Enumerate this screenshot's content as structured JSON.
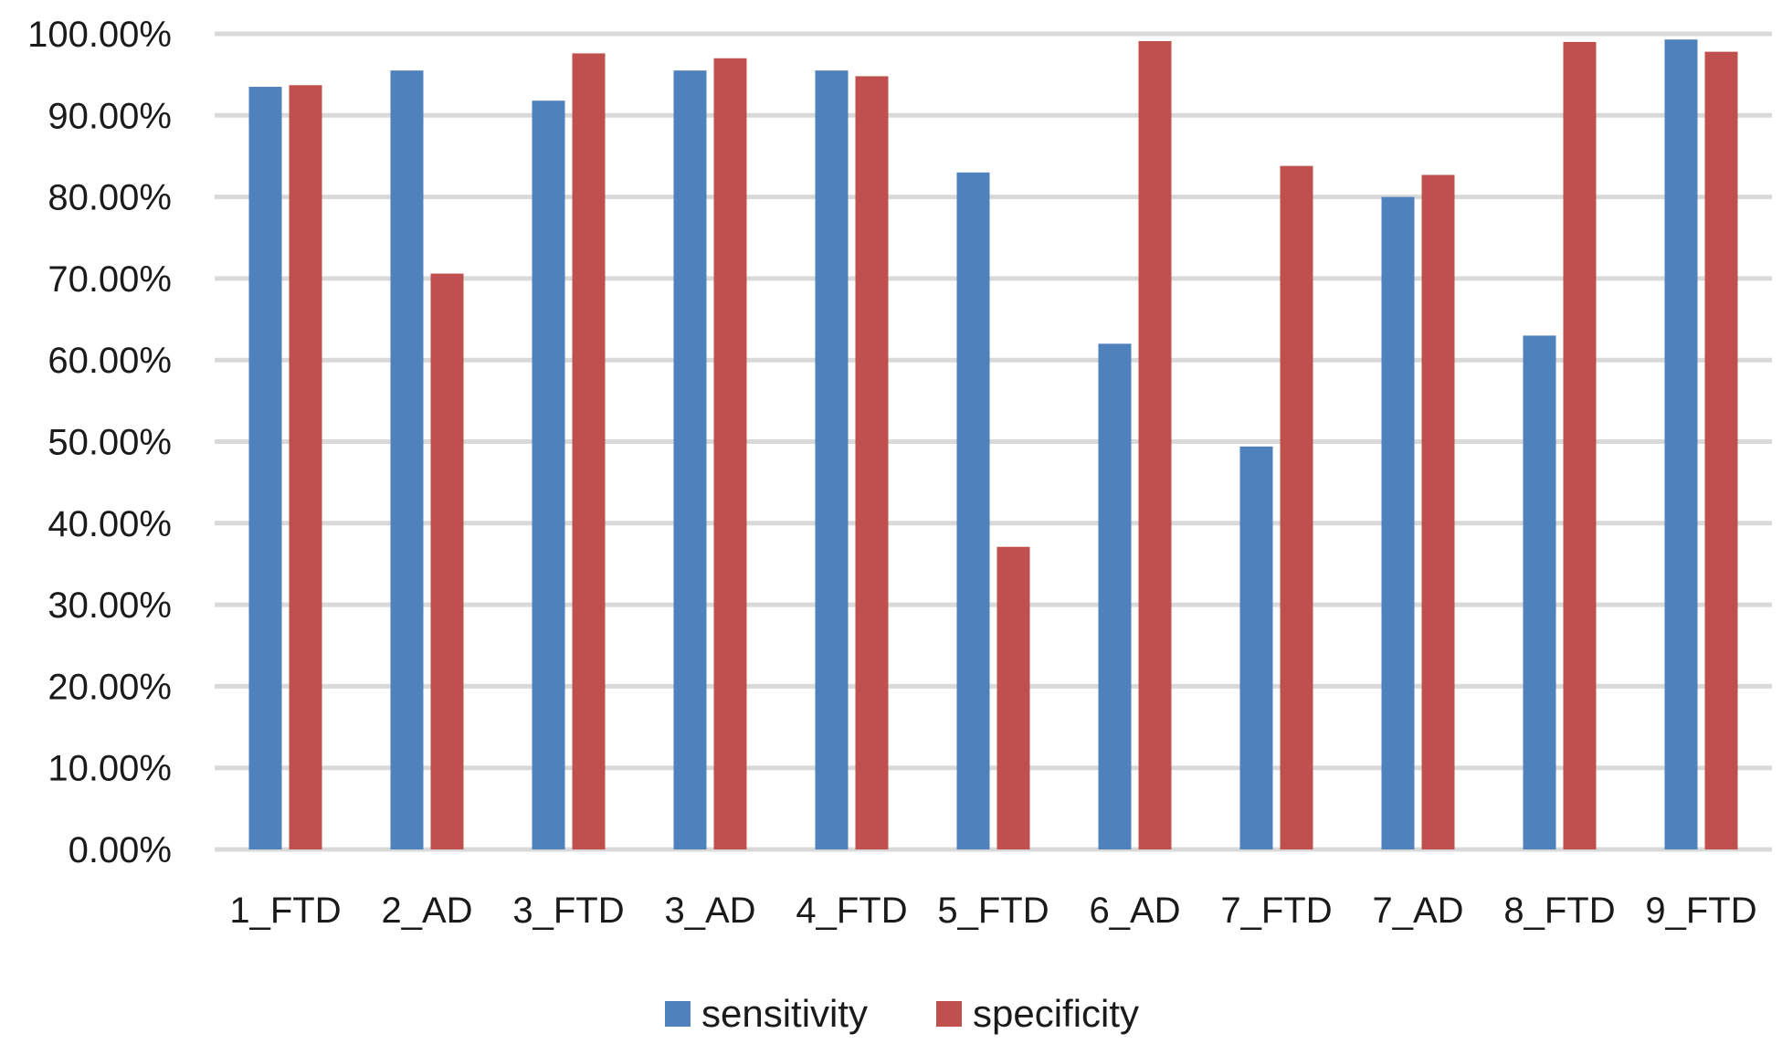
{
  "chart_data": {
    "type": "bar",
    "title": "",
    "xlabel": "",
    "ylabel": "",
    "ylim": [
      0,
      1
    ],
    "grid": true,
    "legend_position": "bottom",
    "y_ticks": [
      {
        "value": 0.0,
        "label": "0.00%"
      },
      {
        "value": 0.1,
        "label": "10.00%"
      },
      {
        "value": 0.2,
        "label": "20.00%"
      },
      {
        "value": 0.3,
        "label": "30.00%"
      },
      {
        "value": 0.4,
        "label": "40.00%"
      },
      {
        "value": 0.5,
        "label": "50.00%"
      },
      {
        "value": 0.6,
        "label": "60.00%"
      },
      {
        "value": 0.7,
        "label": "70.00%"
      },
      {
        "value": 0.8,
        "label": "80.00%"
      },
      {
        "value": 0.9,
        "label": "90.00%"
      },
      {
        "value": 1.0,
        "label": "100.00%"
      }
    ],
    "categories": [
      "1_FTD",
      "2_AD",
      "3_FTD",
      "3_AD",
      "4_FTD",
      "5_FTD",
      "6_AD",
      "7_FTD",
      "7_AD",
      "8_FTD",
      "9_FTD"
    ],
    "series": [
      {
        "name": "sensitivity",
        "color": "#4f81bd",
        "values": [
          0.935,
          0.955,
          0.918,
          0.955,
          0.955,
          0.83,
          0.62,
          0.494,
          0.8,
          0.63,
          0.993
        ]
      },
      {
        "name": "specificity",
        "color": "#c0504d",
        "values": [
          0.937,
          0.706,
          0.976,
          0.97,
          0.948,
          0.371,
          0.991,
          0.838,
          0.827,
          0.99,
          0.978
        ]
      }
    ]
  }
}
